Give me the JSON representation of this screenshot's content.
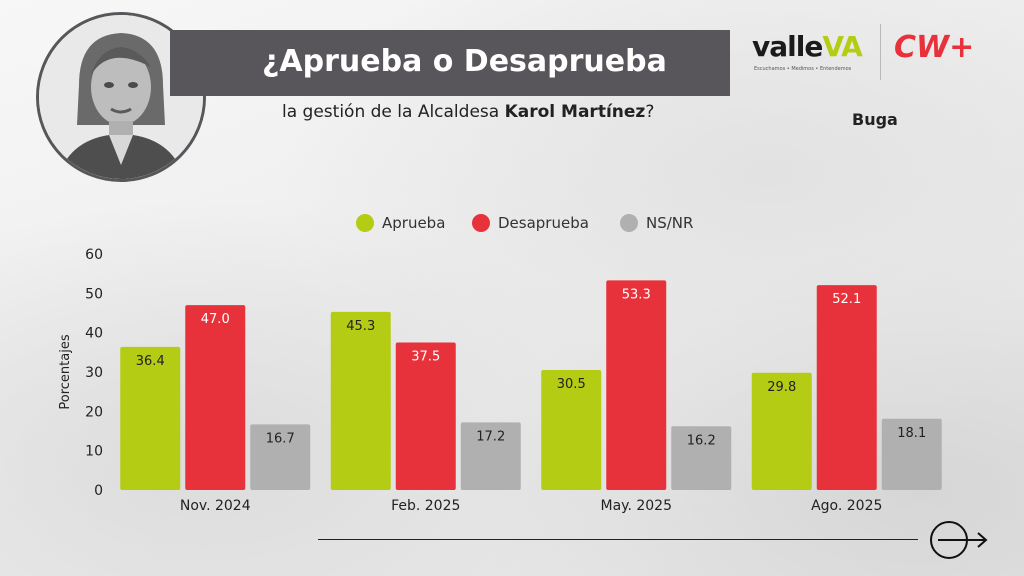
{
  "header": {
    "title": "¿Aprueba o Desaprueba",
    "subtitle_prefix": "la gestión de la Alcaldesa ",
    "subtitle_name": "Karol Martínez",
    "subtitle_suffix": "?",
    "city": "Buga"
  },
  "logos": {
    "valle_word": "valle",
    "valle_va": "VA",
    "valle_tagline": "Escuchamos • Medimos • Entendemos",
    "cw": "CW+"
  },
  "colors": {
    "aprueba": "#b4cc14",
    "desaprueba": "#e8323b",
    "nsnr": "#b0b0b0",
    "title_bar": "#58565a",
    "brand_red": "#e8323b",
    "brand_green": "#b4cc14"
  },
  "icons": {
    "next": "arrow-right-circle-icon"
  },
  "chart_data": {
    "type": "bar",
    "title": "",
    "xlabel": "",
    "ylabel": "Porcentajes",
    "ylim": [
      0,
      60
    ],
    "yticks": [
      0,
      10,
      20,
      30,
      40,
      50,
      60
    ],
    "grid": false,
    "legend_position": "top",
    "categories": [
      "Nov. 2024",
      "Feb. 2025",
      "May. 2025",
      "Ago. 2025"
    ],
    "series": [
      {
        "name": "Aprueba",
        "values": [
          36.4,
          45.3,
          30.5,
          29.8
        ]
      },
      {
        "name": "Desaprueba",
        "values": [
          47.0,
          37.5,
          53.3,
          52.1
        ]
      },
      {
        "name": "NS/NR",
        "values": [
          16.7,
          17.2,
          16.2,
          18.1
        ]
      }
    ]
  }
}
